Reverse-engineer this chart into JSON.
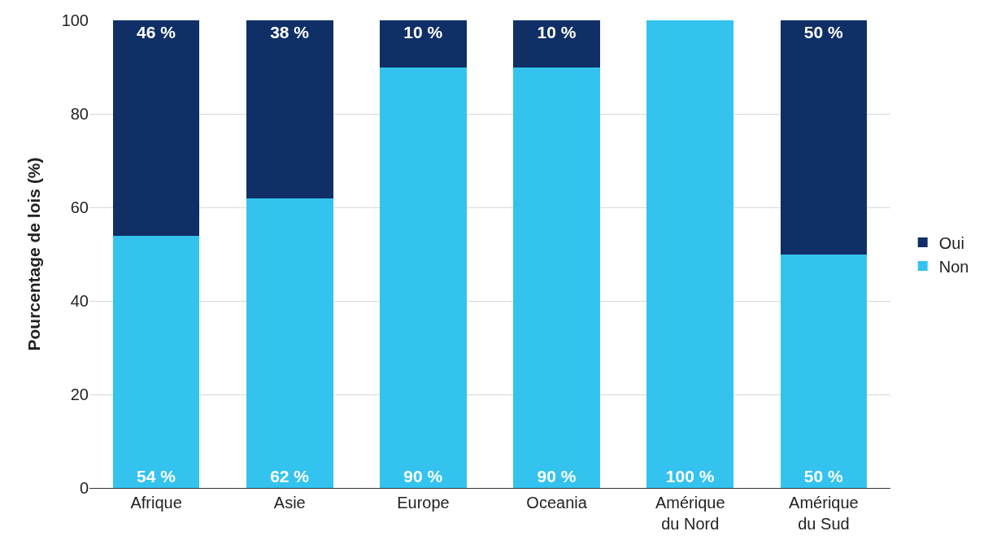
{
  "chart_data": {
    "type": "bar",
    "stacked": true,
    "ylabel": "Pourcentage de lois (%)",
    "categories": [
      "Afrique",
      "Asie",
      "Europe",
      "Oceania",
      "Amérique du Nord",
      "Amérique du Sud"
    ],
    "series": [
      {
        "name": "Non",
        "color": "#33c3ee",
        "values": [
          54,
          62,
          90,
          90,
          100,
          50
        ],
        "value_labels": [
          "54 %",
          "62 %",
          "90 %",
          "90 %",
          "100 %",
          "50 %"
        ]
      },
      {
        "name": "Oui",
        "color": "#0f2f66",
        "values": [
          46,
          38,
          10,
          10,
          0,
          50
        ],
        "value_labels": [
          "46 %",
          "38 %",
          "10 %",
          "10 %",
          null,
          "50 %"
        ]
      }
    ],
    "ylim": [
      0,
      100
    ],
    "yticks": [
      0,
      20,
      40,
      60,
      80,
      100
    ],
    "grid": "y",
    "legend": "right"
  }
}
